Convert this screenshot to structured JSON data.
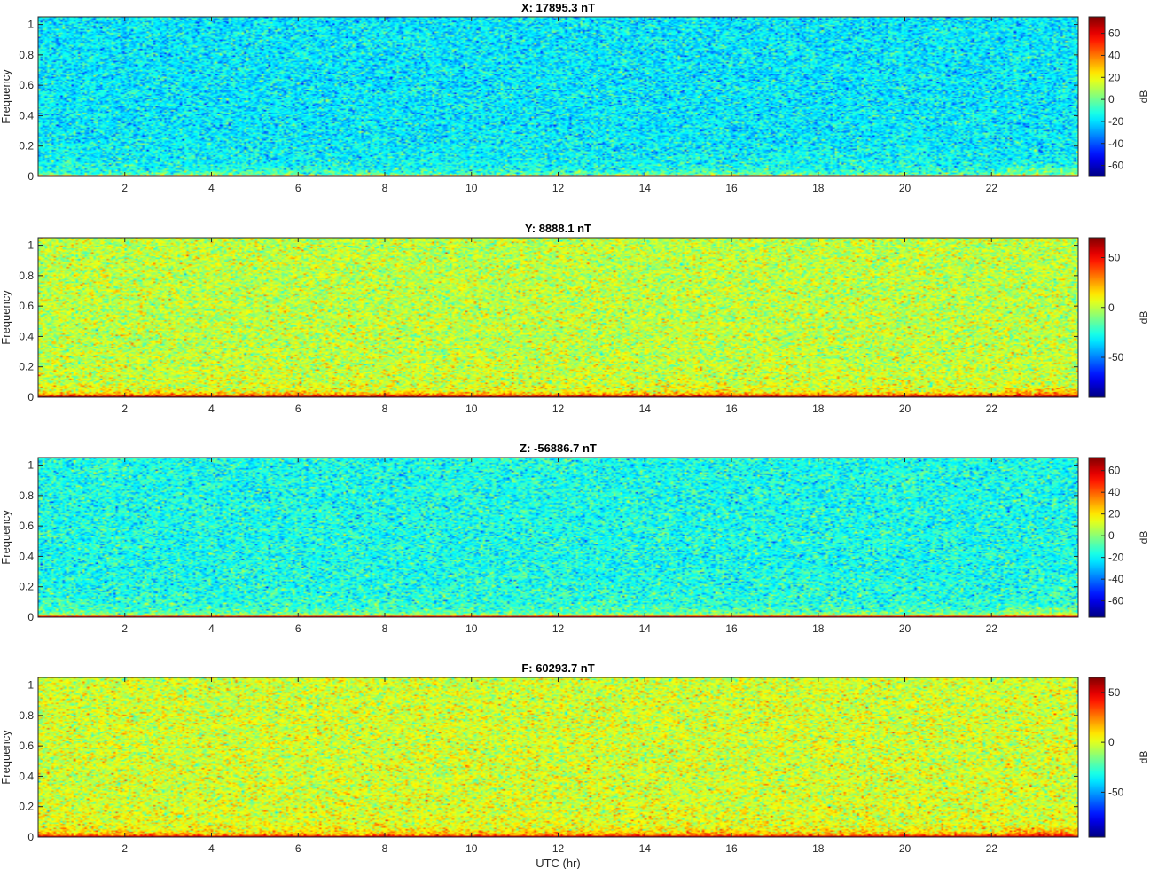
{
  "figure": {
    "xlabel": "UTC (hr)",
    "colorbar_label": "dB",
    "colormap": "jet"
  },
  "chart_data": [
    {
      "type": "heatmap",
      "title": "X: 17895.3 nT",
      "ylabel": "Frequency",
      "xlim": [
        0,
        24
      ],
      "ylim": [
        0,
        1.05
      ],
      "x_ticks": [
        2,
        4,
        6,
        8,
        10,
        12,
        14,
        16,
        18,
        20,
        22
      ],
      "y_ticks": [
        0,
        0.2,
        0.4,
        0.6,
        0.8,
        1
      ],
      "clim": [
        -70,
        75
      ],
      "colorbar_ticks": [
        -60,
        -40,
        -20,
        0,
        20,
        40,
        60
      ],
      "background_db": -18,
      "band_db": 12,
      "floor_db": 65,
      "noise_db": 10
    },
    {
      "type": "heatmap",
      "title": "Y: 8888.1 nT",
      "ylabel": "Frequency",
      "xlim": [
        0,
        24
      ],
      "ylim": [
        0,
        1.05
      ],
      "x_ticks": [
        2,
        4,
        6,
        8,
        10,
        12,
        14,
        16,
        18,
        20,
        22
      ],
      "y_ticks": [
        0,
        0.2,
        0.4,
        0.6,
        0.8,
        1
      ],
      "clim": [
        -90,
        70
      ],
      "colorbar_ticks": [
        -50,
        0,
        50
      ],
      "background_db": 0,
      "band_db": 28,
      "floor_db": 62,
      "noise_db": 11
    },
    {
      "type": "heatmap",
      "title": "Z: -56886.7 nT",
      "ylabel": "Frequency",
      "xlim": [
        0,
        24
      ],
      "ylim": [
        0,
        1.05
      ],
      "x_ticks": [
        2,
        4,
        6,
        8,
        10,
        12,
        14,
        16,
        18,
        20,
        22
      ],
      "y_ticks": [
        0,
        0.2,
        0.4,
        0.6,
        0.8,
        1
      ],
      "clim": [
        -75,
        72
      ],
      "colorbar_ticks": [
        -60,
        -40,
        -20,
        0,
        20,
        40,
        60
      ],
      "background_db": -17,
      "band_db": 18,
      "floor_db": 55,
      "noise_db": 10
    },
    {
      "type": "heatmap",
      "title": "F: 60293.7 nT",
      "ylabel": "Frequency",
      "xlabel": "UTC (hr)",
      "xlim": [
        0,
        24
      ],
      "ylim": [
        0,
        1.05
      ],
      "x_ticks": [
        2,
        4,
        6,
        8,
        10,
        12,
        14,
        16,
        18,
        20,
        22
      ],
      "y_ticks": [
        0,
        0.2,
        0.4,
        0.6,
        0.8,
        1
      ],
      "clim": [
        -95,
        65
      ],
      "colorbar_ticks": [
        -50,
        0,
        50
      ],
      "background_db": -2,
      "band_db": 25,
      "floor_db": 52,
      "noise_db": 11
    }
  ]
}
